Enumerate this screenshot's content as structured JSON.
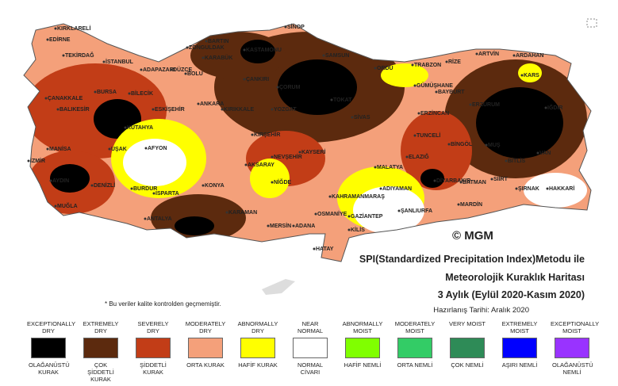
{
  "map": {
    "title_lines": [
      "SPI(Standardized Precipitation Index)Metodu ile",
      "Meteorolojik Kuraklık Haritası",
      "3 Aylık (Eylül 2020-Kasım 2020)"
    ],
    "date": "Hazırlanış Tarihi: Aralık 2020",
    "copyright": "© MGM",
    "note": "* Bu veriler kalite kontrolden geçmemiştir.",
    "cities": [
      "KIRKLARELİ",
      "EDİRNE",
      "TEKİRDAĞ",
      "İSTANBUL",
      "BARTIN",
      "ZONGULDAK",
      "KARABÜK",
      "KASTAMONU",
      "SİNOP",
      "SAMSUN",
      "ORDU",
      "TRABZON",
      "RİZE",
      "ARTVİN",
      "ARDAHAN",
      "KARS",
      "GÜMÜŞHANE",
      "BAYBURT",
      "ERZURUM",
      "ERZİNCAN",
      "IĞDIR",
      "ÇANAKKALE",
      "BURSA",
      "BİLECİK",
      "ADAPAZARI",
      "DÜZCE",
      "BOLU",
      "ESKİŞEHİR",
      "ANKARA",
      "KIRIKKALE",
      "ÇANKIRI",
      "ÇORUM",
      "YOZGAT",
      "TOKAT",
      "SİVAS",
      "BALIKESİR",
      "KÜTAHYA",
      "MANİSA",
      "UŞAK",
      "AFYON",
      "KIRŞEHİR",
      "NEVŞEHİR",
      "KAYSERİ",
      "AKSARAY",
      "NİĞDE",
      "KONYA",
      "İZMİR",
      "AYDIN",
      "DENİZLİ",
      "BURDUR",
      "ISPARTA",
      "MUĞLA",
      "ANTALYA",
      "KARAMAN",
      "MERSİN",
      "ADANA",
      "OSMANİYE",
      "HATAY",
      "KAHRAMANMARAŞ",
      "GAZİANTEP",
      "KİLİS",
      "ADIYAMAN",
      "ŞANLIURFA",
      "MALATYA",
      "ELAZIĞ",
      "TUNCELİ",
      "BİNGÖL",
      "MUŞ",
      "DİYARBAKIR",
      "BATMAN",
      "SİİRT",
      "BİTLİS",
      "VAN",
      "MARDİN",
      "ŞIRNAK",
      "HAKKARİ"
    ],
    "legend": [
      {
        "top": "EXCEPTIONALLY DRY",
        "bottom": "OLAĞANÜSTÜ KURAK",
        "color": "#000000"
      },
      {
        "top": "EXTREMELY DRY",
        "bottom": "ÇOK ŞİDDETLİ KURAK",
        "color": "#5c2a0e"
      },
      {
        "top": "SEVERELY DRY",
        "bottom": "ŞİDDETLİ KURAK",
        "color": "#c23d17"
      },
      {
        "top": "MODERATELY DRY",
        "bottom": "ORTA KURAK",
        "color": "#f4a07a"
      },
      {
        "top": "ABNORMALLY DRY",
        "bottom": "HAFİF KURAK",
        "color": "#ffff00"
      },
      {
        "top": "NEAR NORMAL",
        "bottom": "NORMAL CİVARI",
        "color": "#ffffff"
      },
      {
        "top": "ABNORMALLY MOIST",
        "bottom": "HAFİF NEMLİ",
        "color": "#80ff00"
      },
      {
        "top": "MODERATELY MOIST",
        "bottom": "ORTA NEMLİ",
        "color": "#33cc66"
      },
      {
        "top": "VERY MOIST",
        "bottom": "ÇOK NEMLİ",
        "color": "#2e8b57"
      },
      {
        "top": "EXTREMELY MOIST",
        "bottom": "AŞIRI NEMLİ",
        "color": "#0000ff"
      },
      {
        "top": "EXCEPTIONALLY MOIST",
        "bottom": "OLAĞANÜSTÜ NEMLİ",
        "color": "#9933ff"
      }
    ]
  }
}
